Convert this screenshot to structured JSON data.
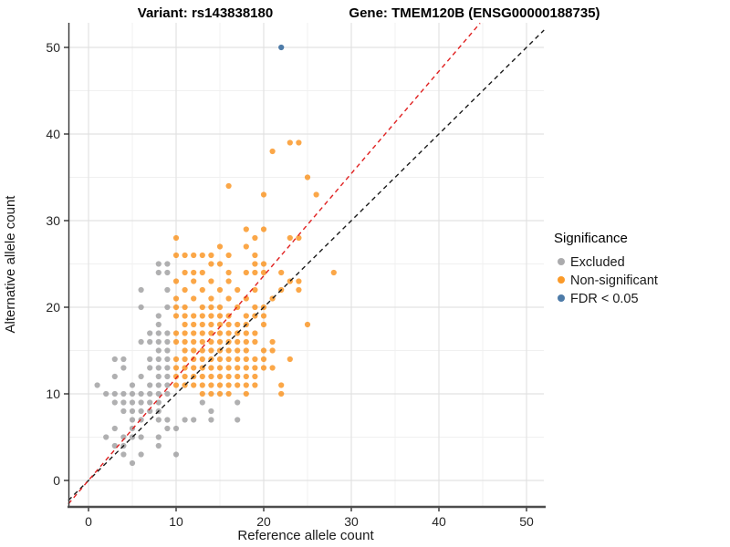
{
  "titles": {
    "variant": "Variant: rs143838180",
    "gene": "Gene: TMEM120B (ENSG00000188735)"
  },
  "chart_data": {
    "type": "scatter",
    "xlabel": "Reference allele count",
    "ylabel": "Alternative allele count",
    "xlim": [
      -2.3,
      52
    ],
    "ylim": [
      -3.05,
      52.8
    ],
    "x_ticks": [
      0,
      10,
      20,
      30,
      40,
      50
    ],
    "y_ticks": [
      0,
      10,
      20,
      30,
      40,
      50
    ],
    "minor_ticks": [
      5,
      15,
      25,
      35,
      45
    ],
    "grid": true,
    "legend": {
      "title": "Significance",
      "position": "right",
      "entries": [
        {
          "label": "Excluded",
          "color": "#ABABAD"
        },
        {
          "label": "Non-significant",
          "color": "#FB9A29"
        },
        {
          "label": "FDR < 0.05",
          "color": "#4D7BA8"
        }
      ]
    },
    "series": [
      {
        "name": "Excluded",
        "color": "#9C9C9E",
        "opacity": 0.8,
        "points": [
          [
            8,
            25
          ],
          [
            9,
            25
          ],
          [
            8,
            24
          ],
          [
            9,
            24
          ],
          [
            6,
            22
          ],
          [
            9,
            22
          ],
          [
            6,
            20
          ],
          [
            9,
            20
          ],
          [
            8,
            19
          ],
          [
            8,
            18
          ],
          [
            7,
            17
          ],
          [
            8,
            17
          ],
          [
            9,
            17
          ],
          [
            6,
            16
          ],
          [
            7,
            16
          ],
          [
            8,
            16
          ],
          [
            9,
            16
          ],
          [
            8,
            15
          ],
          [
            9,
            15
          ],
          [
            3,
            14
          ],
          [
            4,
            14
          ],
          [
            7,
            14
          ],
          [
            8,
            14
          ],
          [
            9,
            14
          ],
          [
            4,
            13
          ],
          [
            7,
            13
          ],
          [
            8,
            13
          ],
          [
            9,
            13
          ],
          [
            3,
            12
          ],
          [
            6,
            12
          ],
          [
            8,
            12
          ],
          [
            9,
            12
          ],
          [
            1,
            11
          ],
          [
            5,
            11
          ],
          [
            7,
            11
          ],
          [
            8,
            11
          ],
          [
            9,
            11
          ],
          [
            2,
            10
          ],
          [
            3,
            10
          ],
          [
            4,
            10
          ],
          [
            5,
            10
          ],
          [
            6,
            10
          ],
          [
            7,
            10
          ],
          [
            8,
            10
          ],
          [
            9,
            10
          ],
          [
            3,
            9
          ],
          [
            4,
            9
          ],
          [
            5,
            9
          ],
          [
            6,
            9
          ],
          [
            7,
            9
          ],
          [
            8,
            9
          ],
          [
            4,
            8
          ],
          [
            5,
            8
          ],
          [
            6,
            8
          ],
          [
            7,
            8
          ],
          [
            8,
            8
          ],
          [
            5,
            7
          ],
          [
            6,
            7
          ],
          [
            8,
            7
          ],
          [
            9,
            7
          ],
          [
            3,
            6
          ],
          [
            5,
            6
          ],
          [
            9,
            6
          ],
          [
            10,
            6
          ],
          [
            2,
            5
          ],
          [
            4,
            5
          ],
          [
            5,
            5
          ],
          [
            6,
            5
          ],
          [
            8,
            5
          ],
          [
            3,
            4
          ],
          [
            4,
            4
          ],
          [
            8,
            4
          ],
          [
            4,
            3
          ],
          [
            6,
            3
          ],
          [
            10,
            3
          ],
          [
            5,
            2
          ],
          [
            13,
            9
          ],
          [
            17,
            9
          ],
          [
            14,
            8
          ],
          [
            11,
            7
          ],
          [
            12,
            7
          ],
          [
            14,
            7
          ],
          [
            17,
            7
          ]
        ]
      },
      {
        "name": "Non-significant",
        "color": "#F98A0B",
        "opacity": 0.75,
        "points": [
          [
            10,
            11
          ],
          [
            10,
            12
          ],
          [
            10,
            13
          ],
          [
            10,
            14
          ],
          [
            10,
            16
          ],
          [
            10,
            17
          ],
          [
            10,
            19
          ],
          [
            10,
            20
          ],
          [
            10,
            21
          ],
          [
            10,
            23
          ],
          [
            10,
            26
          ],
          [
            10,
            28
          ],
          [
            11,
            11
          ],
          [
            11,
            12
          ],
          [
            11,
            13
          ],
          [
            11,
            14
          ],
          [
            11,
            15
          ],
          [
            11,
            16
          ],
          [
            11,
            17
          ],
          [
            11,
            18
          ],
          [
            11,
            19
          ],
          [
            11,
            20
          ],
          [
            11,
            22
          ],
          [
            11,
            24
          ],
          [
            11,
            26
          ],
          [
            12,
            11
          ],
          [
            12,
            12
          ],
          [
            12,
            13
          ],
          [
            12,
            14
          ],
          [
            12,
            15
          ],
          [
            12,
            16
          ],
          [
            12,
            17
          ],
          [
            12,
            18
          ],
          [
            12,
            19
          ],
          [
            12,
            21
          ],
          [
            12,
            23
          ],
          [
            12,
            24
          ],
          [
            12,
            26
          ],
          [
            13,
            10
          ],
          [
            13,
            11
          ],
          [
            13,
            12
          ],
          [
            13,
            13
          ],
          [
            13,
            14
          ],
          [
            13,
            15
          ],
          [
            13,
            16
          ],
          [
            13,
            17
          ],
          [
            13,
            18
          ],
          [
            13,
            19
          ],
          [
            13,
            20
          ],
          [
            13,
            22
          ],
          [
            13,
            24
          ],
          [
            13,
            26
          ],
          [
            14,
            10
          ],
          [
            14,
            11
          ],
          [
            14,
            12
          ],
          [
            14,
            13
          ],
          [
            14,
            14
          ],
          [
            14,
            15
          ],
          [
            14,
            16
          ],
          [
            14,
            17
          ],
          [
            14,
            18
          ],
          [
            14,
            19
          ],
          [
            14,
            20
          ],
          [
            14,
            21
          ],
          [
            14,
            23
          ],
          [
            14,
            25
          ],
          [
            14,
            26
          ],
          [
            15,
            10
          ],
          [
            15,
            11
          ],
          [
            15,
            12
          ],
          [
            15,
            13
          ],
          [
            15,
            14
          ],
          [
            15,
            15
          ],
          [
            15,
            16
          ],
          [
            15,
            17
          ],
          [
            15,
            18
          ],
          [
            15,
            19
          ],
          [
            15,
            20
          ],
          [
            15,
            22
          ],
          [
            15,
            25
          ],
          [
            15,
            27
          ],
          [
            16,
            10
          ],
          [
            16,
            11
          ],
          [
            16,
            12
          ],
          [
            16,
            13
          ],
          [
            16,
            14
          ],
          [
            16,
            15
          ],
          [
            16,
            16
          ],
          [
            16,
            17
          ],
          [
            16,
            18
          ],
          [
            16,
            19
          ],
          [
            16,
            21
          ],
          [
            16,
            23
          ],
          [
            16,
            24
          ],
          [
            16,
            26
          ],
          [
            16,
            34
          ],
          [
            17,
            11
          ],
          [
            17,
            12
          ],
          [
            17,
            13
          ],
          [
            17,
            14
          ],
          [
            17,
            15
          ],
          [
            17,
            16
          ],
          [
            17,
            17
          ],
          [
            17,
            18
          ],
          [
            17,
            20
          ],
          [
            17,
            22
          ],
          [
            18,
            10
          ],
          [
            18,
            11
          ],
          [
            18,
            12
          ],
          [
            18,
            13
          ],
          [
            18,
            14
          ],
          [
            18,
            15
          ],
          [
            18,
            16
          ],
          [
            18,
            17
          ],
          [
            18,
            18
          ],
          [
            18,
            19
          ],
          [
            18,
            21
          ],
          [
            18,
            24
          ],
          [
            18,
            27
          ],
          [
            18,
            29
          ],
          [
            19,
            11
          ],
          [
            19,
            12
          ],
          [
            19,
            13
          ],
          [
            19,
            14
          ],
          [
            19,
            16
          ],
          [
            19,
            17
          ],
          [
            19,
            19
          ],
          [
            19,
            20
          ],
          [
            19,
            22
          ],
          [
            19,
            24
          ],
          [
            19,
            25
          ],
          [
            19,
            26
          ],
          [
            19,
            28
          ],
          [
            20,
            13
          ],
          [
            20,
            14
          ],
          [
            20,
            15
          ],
          [
            20,
            18
          ],
          [
            20,
            19
          ],
          [
            20,
            20
          ],
          [
            20,
            24
          ],
          [
            20,
            25
          ],
          [
            20,
            29
          ],
          [
            20,
            33
          ],
          [
            21,
            13
          ],
          [
            21,
            15
          ],
          [
            21,
            16
          ],
          [
            21,
            21
          ],
          [
            21,
            38
          ],
          [
            22,
            10
          ],
          [
            22,
            11
          ],
          [
            22,
            22
          ],
          [
            22,
            24
          ],
          [
            23,
            14
          ],
          [
            23,
            23
          ],
          [
            23,
            28
          ],
          [
            23,
            39
          ],
          [
            24,
            22
          ],
          [
            24,
            23
          ],
          [
            24,
            28
          ],
          [
            24,
            39
          ],
          [
            25,
            18
          ],
          [
            25,
            35
          ],
          [
            26,
            33
          ],
          [
            28,
            24
          ]
        ]
      },
      {
        "name": "FDR < 0.05",
        "color": "#4D7BA8",
        "opacity": 1,
        "points": [
          [
            22,
            50
          ]
        ]
      }
    ],
    "lines": [
      {
        "name": "identity-line",
        "style": "dashed",
        "color": "#1A1A1A",
        "x1": -2.3,
        "y1": -2.3,
        "x2": 52,
        "y2": 52
      },
      {
        "name": "expected-ratio-line",
        "style": "dashed",
        "color": "#E02020",
        "x1": -2.3,
        "y1": -2.71,
        "x2": 44.7,
        "y2": 52.8
      }
    ]
  }
}
